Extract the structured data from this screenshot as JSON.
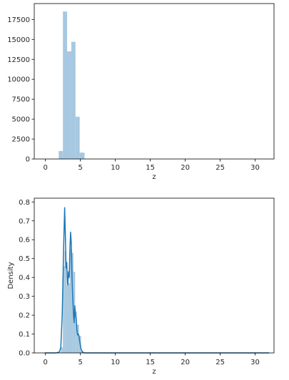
{
  "chart_data": [
    {
      "type": "bar",
      "subtype": "histogram",
      "xlabel": "z",
      "ylabel": "",
      "xlim": [
        -1.6,
        32.7
      ],
      "ylim": [
        0,
        19500
      ],
      "xticks": [
        0,
        5,
        10,
        15,
        20,
        25,
        30
      ],
      "yticks": [
        0,
        2500,
        5000,
        7500,
        10000,
        12500,
        15000,
        17500
      ],
      "bar_color": "#a6c8e0",
      "bins": [
        {
          "x0": 1.9,
          "x1": 2.5,
          "value": 1000
        },
        {
          "x0": 2.5,
          "x1": 3.1,
          "value": 18500
        },
        {
          "x0": 3.1,
          "x1": 3.7,
          "value": 13500
        },
        {
          "x0": 3.7,
          "x1": 4.3,
          "value": 14700
        },
        {
          "x0": 4.3,
          "x1": 4.9,
          "value": 5300
        },
        {
          "x0": 4.9,
          "x1": 5.6,
          "value": 800
        }
      ]
    },
    {
      "type": "histogram_kde",
      "xlabel": "z",
      "ylabel": "Density",
      "xlim": [
        -1.6,
        32.7
      ],
      "ylim": [
        0,
        0.82
      ],
      "xticks": [
        0,
        5,
        10,
        15,
        20,
        25,
        30
      ],
      "yticks": [
        0.0,
        0.1,
        0.2,
        0.3,
        0.4,
        0.5,
        0.6,
        0.7,
        0.8
      ],
      "bar_color": "#a6c8e0",
      "line_color": "#1f77b4",
      "bins": [
        {
          "x0": 2.2,
          "x1": 2.5,
          "value": 0.03
        },
        {
          "x0": 2.5,
          "x1": 2.75,
          "value": 0.46
        },
        {
          "x0": 2.75,
          "x1": 3.0,
          "value": 0.54
        },
        {
          "x0": 3.0,
          "x1": 3.25,
          "value": 0.36
        },
        {
          "x0": 3.25,
          "x1": 3.5,
          "value": 0.37
        },
        {
          "x0": 3.5,
          "x1": 3.75,
          "value": 0.55
        },
        {
          "x0": 3.75,
          "x1": 4.0,
          "value": 0.53
        },
        {
          "x0": 4.0,
          "x1": 4.25,
          "value": 0.43
        },
        {
          "x0": 4.25,
          "x1": 4.5,
          "value": 0.22
        },
        {
          "x0": 4.5,
          "x1": 4.8,
          "value": 0.15
        },
        {
          "x0": 4.8,
          "x1": 5.1,
          "value": 0.09
        },
        {
          "x0": 5.1,
          "x1": 5.4,
          "value": 0.01
        }
      ],
      "kde": {
        "x": [
          -0.1,
          1.5,
          2.0,
          2.2,
          2.4,
          2.6,
          2.75,
          2.85,
          2.95,
          3.05,
          3.15,
          3.2,
          3.3,
          3.4,
          3.5,
          3.6,
          3.7,
          3.8,
          3.9,
          4.0,
          4.1,
          4.15,
          4.2,
          4.3,
          4.4,
          4.5,
          4.6,
          4.7,
          4.8,
          4.9,
          5.1,
          5.3,
          5.6,
          6.0,
          8.0,
          15.0,
          25.0,
          32.0
        ],
        "y": [
          0.0,
          0.0,
          0.005,
          0.03,
          0.2,
          0.55,
          0.77,
          0.63,
          0.45,
          0.48,
          0.37,
          0.36,
          0.43,
          0.4,
          0.55,
          0.64,
          0.58,
          0.4,
          0.3,
          0.22,
          0.16,
          0.19,
          0.25,
          0.2,
          0.18,
          0.12,
          0.095,
          0.1,
          0.09,
          0.06,
          0.02,
          0.005,
          0.0,
          0.0,
          0.0,
          0.0,
          0.0,
          0.0
        ]
      }
    }
  ]
}
